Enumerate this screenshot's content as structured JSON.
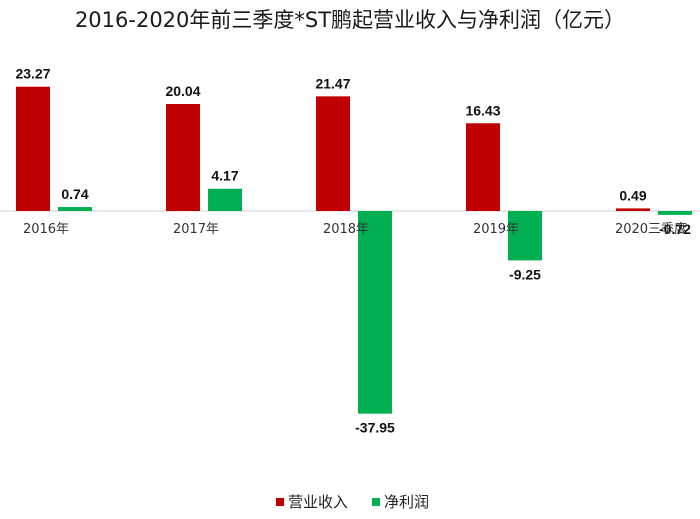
{
  "chart_data": {
    "type": "bar",
    "title": "2016-2020年前三季度*ST鹏起营业收入与净利润（亿元）",
    "categories": [
      "2016年",
      "2017年",
      "2018年",
      "2019年",
      "2020三季度"
    ],
    "series": [
      {
        "name": "营业收入",
        "color": "#c00000",
        "values": [
          23.27,
          20.04,
          21.47,
          16.43,
          0.49
        ],
        "labels": [
          "23.27",
          "20.04",
          "21.47",
          "16.43",
          "0.49"
        ]
      },
      {
        "name": "净利润",
        "color": "#00b050",
        "values": [
          0.74,
          4.17,
          -37.95,
          -9.25,
          -0.72
        ],
        "labels": [
          "0.74",
          "4.17",
          "-37.95",
          "-9.25",
          "-0.72"
        ]
      }
    ],
    "xlabel": "",
    "ylabel": "",
    "ylim": [
      -40,
      26
    ],
    "grid": false,
    "legend": "bottom-center"
  }
}
